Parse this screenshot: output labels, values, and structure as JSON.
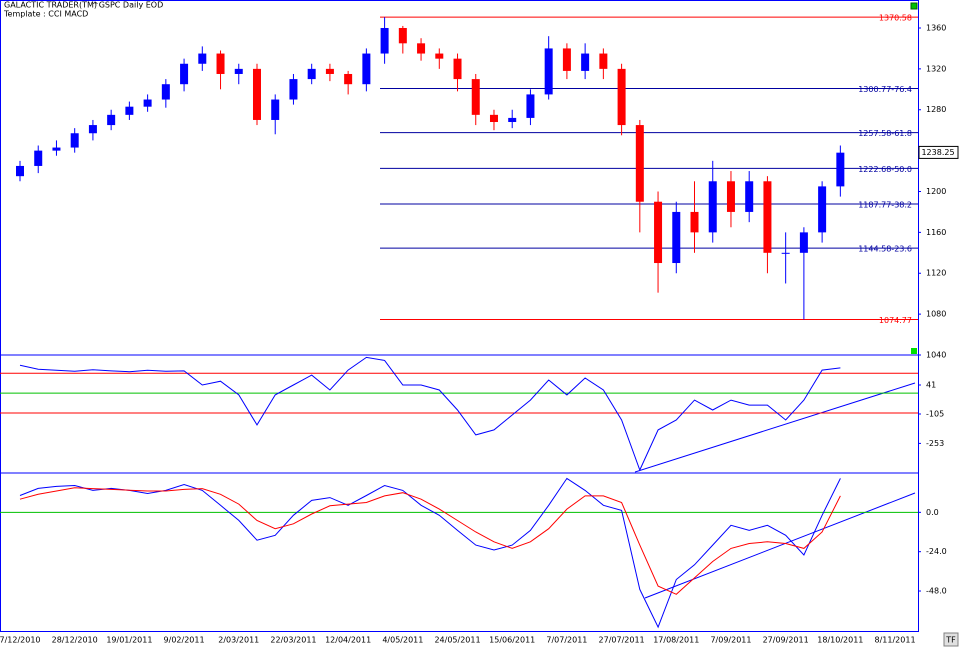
{
  "header": {
    "app": "GALACTIC TRADER(TM)",
    "symbol": "^GSPC Daily EOD",
    "template": "Template : CCI MACD"
  },
  "button": "TF",
  "chart_data": [
    {
      "type": "candlestick",
      "categories": [
        "7/12/2010",
        null,
        null,
        "28/12/2010",
        null,
        null,
        "19/01/2011",
        null,
        null,
        "9/02/2011",
        null,
        null,
        "2/03/2011",
        null,
        null,
        "22/03/2011",
        null,
        null,
        "12/04/2011",
        null,
        null,
        "4/05/2011",
        null,
        null,
        "24/05/2011",
        null,
        null,
        "15/06/2011",
        null,
        null,
        "7/07/2011",
        null,
        null,
        "27/07/2011",
        null,
        null,
        "17/08/2011",
        null,
        null,
        "7/09/2011",
        null,
        null,
        "27/09/2011",
        null,
        null,
        "18/10/2011",
        null,
        null,
        "8/11/2011",
        null,
        null
      ],
      "open": [
        1215,
        1225,
        1240,
        1243,
        1257,
        1265,
        1275,
        1283,
        1290,
        1305,
        1325,
        1335,
        1315,
        1320,
        1270,
        1290,
        1310,
        1320,
        1315,
        1305,
        1335,
        1360,
        1345,
        1335,
        1330,
        1310,
        1275,
        1268,
        1272,
        1295,
        1340,
        1318,
        1335,
        1320,
        1265,
        1190,
        1130,
        1180,
        1160,
        1210,
        1180,
        1210,
        1140,
        1140,
        1160,
        1205,
        null,
        null,
        null,
        null,
        null
      ],
      "high": [
        1230,
        1245,
        1250,
        1262,
        1270,
        1280,
        1288,
        1295,
        1310,
        1330,
        1342,
        1338,
        1325,
        1325,
        1295,
        1315,
        1325,
        1325,
        1318,
        1340,
        1370.58,
        1362,
        1350,
        1340,
        1335,
        1315,
        1280,
        1280,
        1300,
        1352,
        1345,
        1345,
        1340,
        1325,
        1270,
        1200,
        1190,
        1210,
        1230,
        1220,
        1220,
        1215,
        1160,
        1165,
        1210,
        1245,
        null,
        null,
        null,
        null,
        null
      ],
      "low": [
        1210,
        1218,
        1235,
        1238,
        1250,
        1260,
        1270,
        1278,
        1282,
        1298,
        1318,
        1300,
        1305,
        1265,
        1256,
        1285,
        1305,
        1308,
        1295,
        1298,
        1325,
        1335,
        1328,
        1320,
        1298,
        1265,
        1260,
        1262,
        1265,
        1290,
        1310,
        1310,
        1310,
        1255,
        1160,
        1101,
        1120,
        1140,
        1150,
        1165,
        1170,
        1120,
        1110,
        1074.77,
        1150,
        1195,
        null,
        null,
        null,
        null,
        null
      ],
      "close": [
        1225,
        1240,
        1243,
        1257,
        1265,
        1275,
        1283,
        1290,
        1305,
        1325,
        1335,
        1315,
        1320,
        1270,
        1290,
        1310,
        1320,
        1315,
        1305,
        1335,
        1360,
        1345,
        1335,
        1330,
        1310,
        1275,
        1268,
        1272,
        1295,
        1340,
        1318,
        1335,
        1320,
        1265,
        1190,
        1130,
        1180,
        1160,
        1210,
        1180,
        1210,
        1140,
        1140,
        1160,
        1205,
        1238,
        null,
        null,
        null,
        null,
        null
      ],
      "up_color": "#0000ff",
      "down_color": "#ff0000",
      "ylim": [
        1040,
        1382.5
      ],
      "yticks": [
        1040,
        1080,
        1120,
        1160,
        1200,
        1280,
        1320,
        1360
      ],
      "last_price": 1238.25,
      "levels": [
        {
          "value": 1370.58,
          "color": "#ff0000"
        },
        {
          "value": 1300.77,
          "label": "1300.77-76.4",
          "color": "#0000a0"
        },
        {
          "value": 1257.58,
          "label": "1257.58-61.8",
          "color": "#0000a0"
        },
        {
          "value": 1222.68,
          "label": "1222.68-50.0",
          "color": "#0000a0"
        },
        {
          "value": 1187.77,
          "label": "1187.77-38.2",
          "color": "#0000a0"
        },
        {
          "value": 1144.58,
          "label": "1144.58-23.6",
          "color": "#0000a0"
        },
        {
          "value": 1074.77,
          "color": "#ff0000"
        }
      ]
    },
    {
      "type": "line",
      "color": "#0000ff",
      "values": [
        140,
        120,
        115,
        110,
        118,
        112,
        108,
        115,
        110,
        112,
        41,
        60,
        -9,
        -160,
        -9,
        41,
        91,
        16,
        116,
        180,
        165,
        41,
        41,
        16,
        -85,
        -210,
        -185,
        -110,
        -35,
        66,
        -9,
        76,
        16,
        -135,
        -387,
        -185,
        -135,
        -35,
        -85,
        -35,
        -60,
        -60,
        -135,
        -35,
        116,
        127,
        null,
        null,
        null,
        null,
        null
      ],
      "ylim": [
        -402,
        192
      ],
      "yticks": [
        41,
        -105,
        -253
      ],
      "reference_lines": [
        {
          "value": 100,
          "color": "#ff0000"
        },
        {
          "value": 0,
          "color": "#00c000"
        },
        {
          "value": -100,
          "color": "#ff0000"
        }
      ]
    },
    {
      "type": "line",
      "series": [
        {
          "color": "#0000ff",
          "values": [
            10.3,
            14.6,
            15.8,
            16.4,
            13.4,
            14.6,
            13.4,
            11.5,
            13.4,
            17,
            13.4,
            4.3,
            -4.9,
            -17,
            -14,
            -1.8,
            7.3,
            9,
            4.3,
            10.3,
            16.4,
            13.4,
            4.3,
            -1.8,
            -11,
            -20,
            -23,
            -20,
            -11,
            4.3,
            20.7,
            13.4,
            4.3,
            1.2,
            -47,
            -70,
            -41,
            -32,
            -20,
            -7.9,
            -11,
            -7.9,
            -14,
            -26,
            -1.8,
            20.7,
            null,
            null,
            null,
            null,
            null
          ]
        },
        {
          "color": "#ff0000",
          "values": [
            8,
            11,
            13,
            15,
            14.5,
            14,
            13.5,
            13,
            13,
            14,
            14.5,
            11,
            5,
            -5,
            -10,
            -7,
            -1,
            4,
            5,
            6,
            10,
            12,
            8,
            2,
            -5,
            -12,
            -18,
            -22,
            -18,
            -10,
            2,
            10,
            10,
            6,
            -20,
            -45,
            -50,
            -40,
            -30,
            -22,
            -19,
            -18,
            -19,
            -22,
            -12,
            10,
            null,
            null,
            null,
            null,
            null
          ]
        }
      ],
      "ylim": [
        -73,
        24
      ],
      "yticks": [
        {
          "value": 0,
          "label": "0.0"
        },
        {
          "value": -24,
          "label": "-24.0"
        },
        {
          "value": -48,
          "label": "-48.0"
        }
      ],
      "reference_lines": [
        {
          "value": 0,
          "color": "#00c000"
        }
      ]
    }
  ]
}
